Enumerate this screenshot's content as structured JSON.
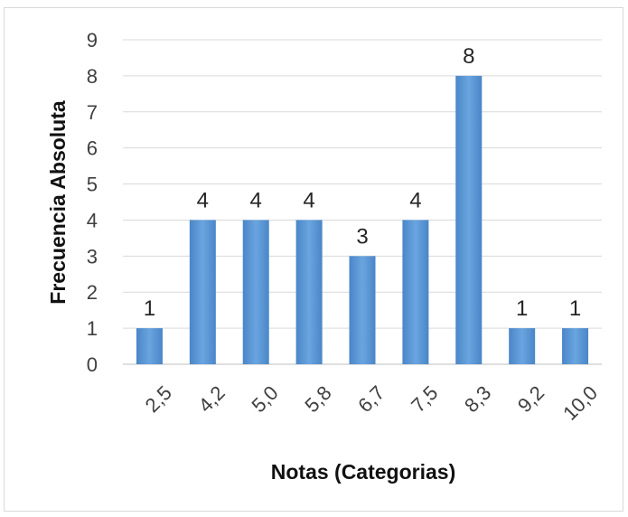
{
  "chart_data": {
    "type": "bar",
    "title": "",
    "xlabel": "Notas (Categorias)",
    "ylabel": "Frecuencia Absoluta",
    "categories": [
      "2,5",
      "4,2",
      "5,0",
      "5,8",
      "6,7",
      "7,5",
      "8,3",
      "9,2",
      "10,0"
    ],
    "values": [
      1,
      4,
      4,
      4,
      3,
      4,
      8,
      1,
      1
    ],
    "ylim": [
      0,
      9
    ],
    "yticks": [
      0,
      1,
      2,
      3,
      4,
      5,
      6,
      7,
      8,
      9
    ],
    "grid": true,
    "legend": "none",
    "bar_color": "#5b9bd5",
    "data_labels": true
  }
}
